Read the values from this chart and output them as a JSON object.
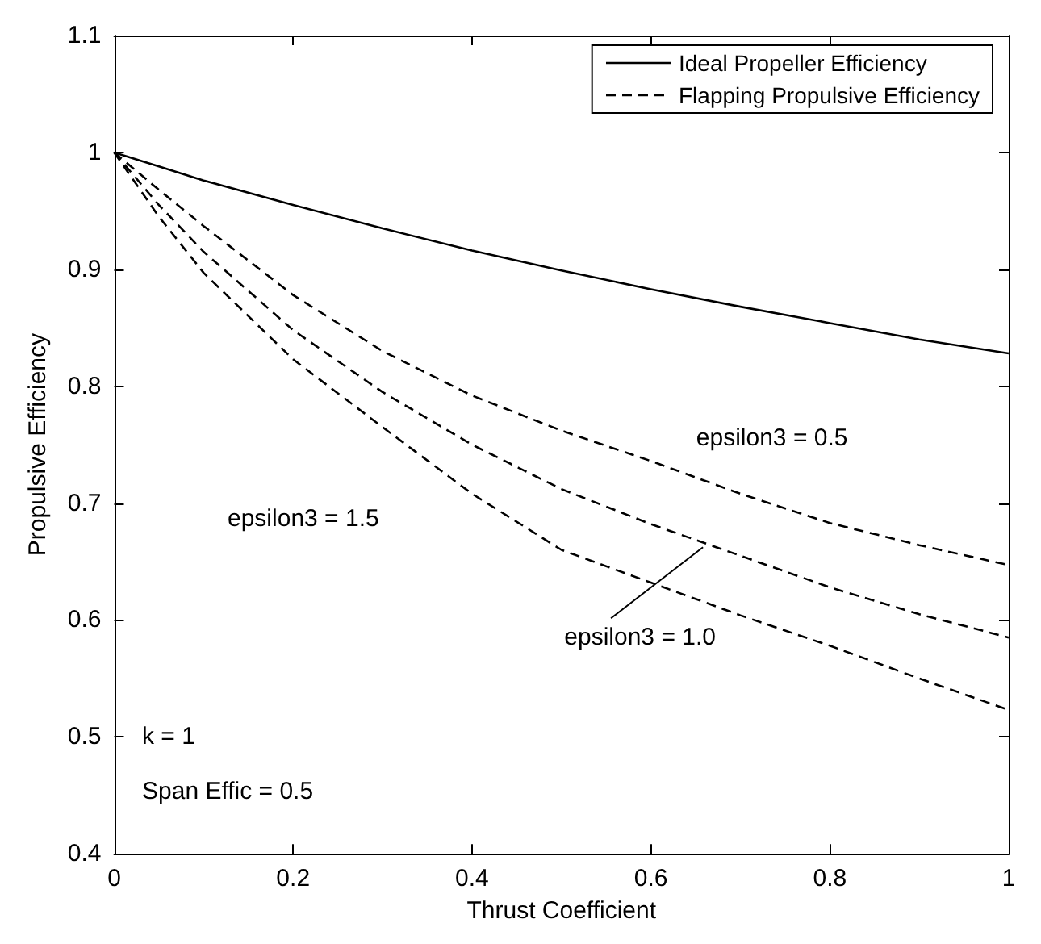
{
  "chart_data": {
    "type": "line",
    "xlabel": "Thrust Coefficient",
    "ylabel": "Propulsive Efficiency",
    "x": [
      0,
      0.05,
      0.1,
      0.2,
      0.3,
      0.4,
      0.5,
      0.6,
      0.7,
      0.8,
      0.9,
      1
    ],
    "series": [
      {
        "name": "Ideal Propeller Efficiency",
        "color": "#000000",
        "line_style": "solid",
        "values": [
          1,
          0.988,
          0.976,
          0.955,
          0.935,
          0.916,
          0.899,
          0.883,
          0.868,
          0.854,
          0.84,
          0.828
        ]
      },
      {
        "name": "Flapping Propulsive Efficiency",
        "color": "#000000",
        "line_style": "dashed",
        "values": [
          1,
          0.968,
          0.937,
          0.878,
          0.83,
          0.792,
          0.762,
          0.736,
          0.708,
          0.683,
          0.664,
          0.647
        ]
      },
      {
        "color": "#000000",
        "line_style": "dashed",
        "values": [
          1,
          0.955,
          0.915,
          0.848,
          0.795,
          0.75,
          0.712,
          0.682,
          0.655,
          0.628,
          0.605,
          0.585
        ]
      },
      {
        "color": "#000000",
        "line_style": "dashed",
        "values": [
          1,
          0.945,
          0.897,
          0.823,
          0.765,
          0.708,
          0.66,
          0.632,
          0.604,
          0.578,
          0.55,
          0.523
        ]
      }
    ],
    "annotations": [
      {
        "text": "epsilon3 = 0.5",
        "x": 0.6,
        "y": 0.736
      },
      "epsilon3 = 1.5",
      {
        "text": "epsilon3 = 1.0",
        "x": 0.66,
        "y": 0.665
      },
      "k = 1",
      "Span Effic = 0.5"
    ],
    "xlim": [
      0,
      1
    ],
    "ylim": [
      0.4,
      1.1
    ],
    "xticks": [
      0,
      0.2,
      0.4,
      0.6,
      0.8,
      1
    ],
    "yticks": [
      0.4,
      0.5,
      0.6,
      0.7,
      0.8,
      0.9,
      1,
      1.1
    ],
    "grid": false,
    "legend": "top right",
    "marker": "none"
  }
}
